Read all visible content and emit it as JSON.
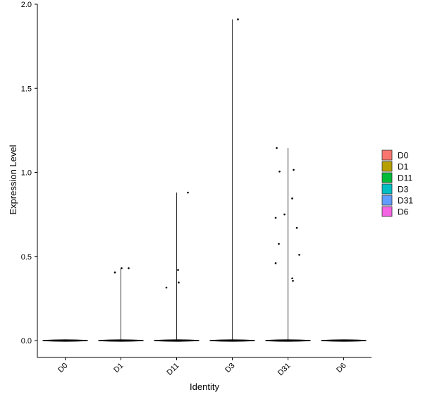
{
  "chart_data": {
    "type": "violin",
    "title": "",
    "xlabel": "Identity",
    "ylabel": "Expression Level",
    "categories": [
      "D0",
      "D1",
      "D11",
      "D3",
      "D31",
      "D6"
    ],
    "ylim": [
      -0.1,
      2.0
    ],
    "yticks": [
      0.0,
      0.5,
      1.0,
      1.5,
      2.0
    ],
    "ytick_labels": [
      "0.0",
      "0.5",
      "1.0",
      "1.5",
      "2.0"
    ],
    "grid": false,
    "legend_position": "right",
    "legend": [
      {
        "label": "D0",
        "color": "#F8766D"
      },
      {
        "label": "D1",
        "color": "#B79F00"
      },
      {
        "label": "D11",
        "color": "#00BA38"
      },
      {
        "label": "D3",
        "color": "#00BFC4"
      },
      {
        "label": "D31",
        "color": "#619CFF"
      },
      {
        "label": "D6",
        "color": "#F564E3"
      }
    ],
    "series": [
      {
        "category": "D0",
        "max": 0.0,
        "points": []
      },
      {
        "category": "D1",
        "max": 0.43,
        "points": [
          {
            "jitter": -0.17,
            "y": 0.405
          },
          {
            "jitter": 0.02,
            "y": 0.43
          },
          {
            "jitter": 0.22,
            "y": 0.43
          }
        ]
      },
      {
        "category": "D11",
        "max": 0.88,
        "points": [
          {
            "jitter": -0.29,
            "y": 0.315
          },
          {
            "jitter": 0.04,
            "y": 0.42
          },
          {
            "jitter": 0.06,
            "y": 0.345
          },
          {
            "jitter": 0.32,
            "y": 0.88
          }
        ]
      },
      {
        "category": "D3",
        "max": 1.91,
        "points": [
          {
            "jitter": 0.16,
            "y": 1.91
          }
        ]
      },
      {
        "category": "D31",
        "max": 1.145,
        "points": [
          {
            "jitter": -0.32,
            "y": 1.145
          },
          {
            "jitter": -0.24,
            "y": 1.005
          },
          {
            "jitter": 0.16,
            "y": 1.015
          },
          {
            "jitter": 0.12,
            "y": 0.845
          },
          {
            "jitter": -0.1,
            "y": 0.75
          },
          {
            "jitter": -0.35,
            "y": 0.73
          },
          {
            "jitter": 0.25,
            "y": 0.67
          },
          {
            "jitter": -0.26,
            "y": 0.575
          },
          {
            "jitter": 0.32,
            "y": 0.51
          },
          {
            "jitter": -0.35,
            "y": 0.46
          },
          {
            "jitter": 0.12,
            "y": 0.37
          },
          {
            "jitter": 0.14,
            "y": 0.355
          }
        ]
      },
      {
        "category": "D6",
        "max": 0.0,
        "points": []
      }
    ]
  }
}
